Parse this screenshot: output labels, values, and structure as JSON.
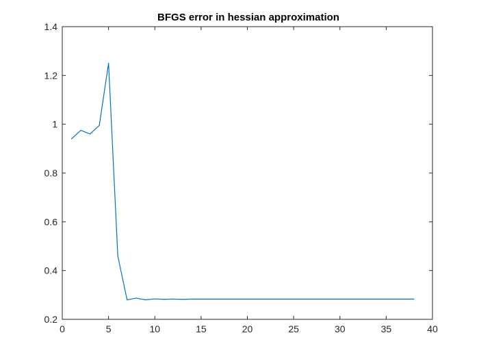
{
  "chart_data": {
    "type": "line",
    "title": "BFGS error in hessian approximation",
    "xlabel": "",
    "ylabel": "",
    "xlim": [
      0,
      40
    ],
    "ylim": [
      0.2,
      1.4
    ],
    "xticks": [
      0,
      5,
      10,
      15,
      20,
      25,
      30,
      35,
      40
    ],
    "yticks": [
      0.2,
      0.4,
      0.6,
      0.8,
      1,
      1.2,
      1.4
    ],
    "grid": false,
    "color": "#0072bd",
    "series": [
      {
        "x": [
          1,
          2,
          3,
          4,
          5,
          6,
          7,
          8,
          9,
          10,
          11,
          12,
          13,
          14,
          15,
          16,
          17,
          18,
          19,
          20,
          21,
          22,
          23,
          24,
          25,
          26,
          27,
          28,
          29,
          30,
          31,
          32,
          33,
          34,
          35,
          36,
          37,
          38
        ],
        "y": [
          0.94,
          0.975,
          0.96,
          0.995,
          1.25,
          0.46,
          0.28,
          0.287,
          0.28,
          0.284,
          0.282,
          0.283,
          0.282,
          0.283,
          0.283,
          0.283,
          0.283,
          0.283,
          0.283,
          0.283,
          0.283,
          0.283,
          0.283,
          0.283,
          0.283,
          0.283,
          0.283,
          0.283,
          0.283,
          0.283,
          0.283,
          0.283,
          0.283,
          0.283,
          0.283,
          0.283,
          0.283,
          0.283
        ]
      }
    ]
  }
}
